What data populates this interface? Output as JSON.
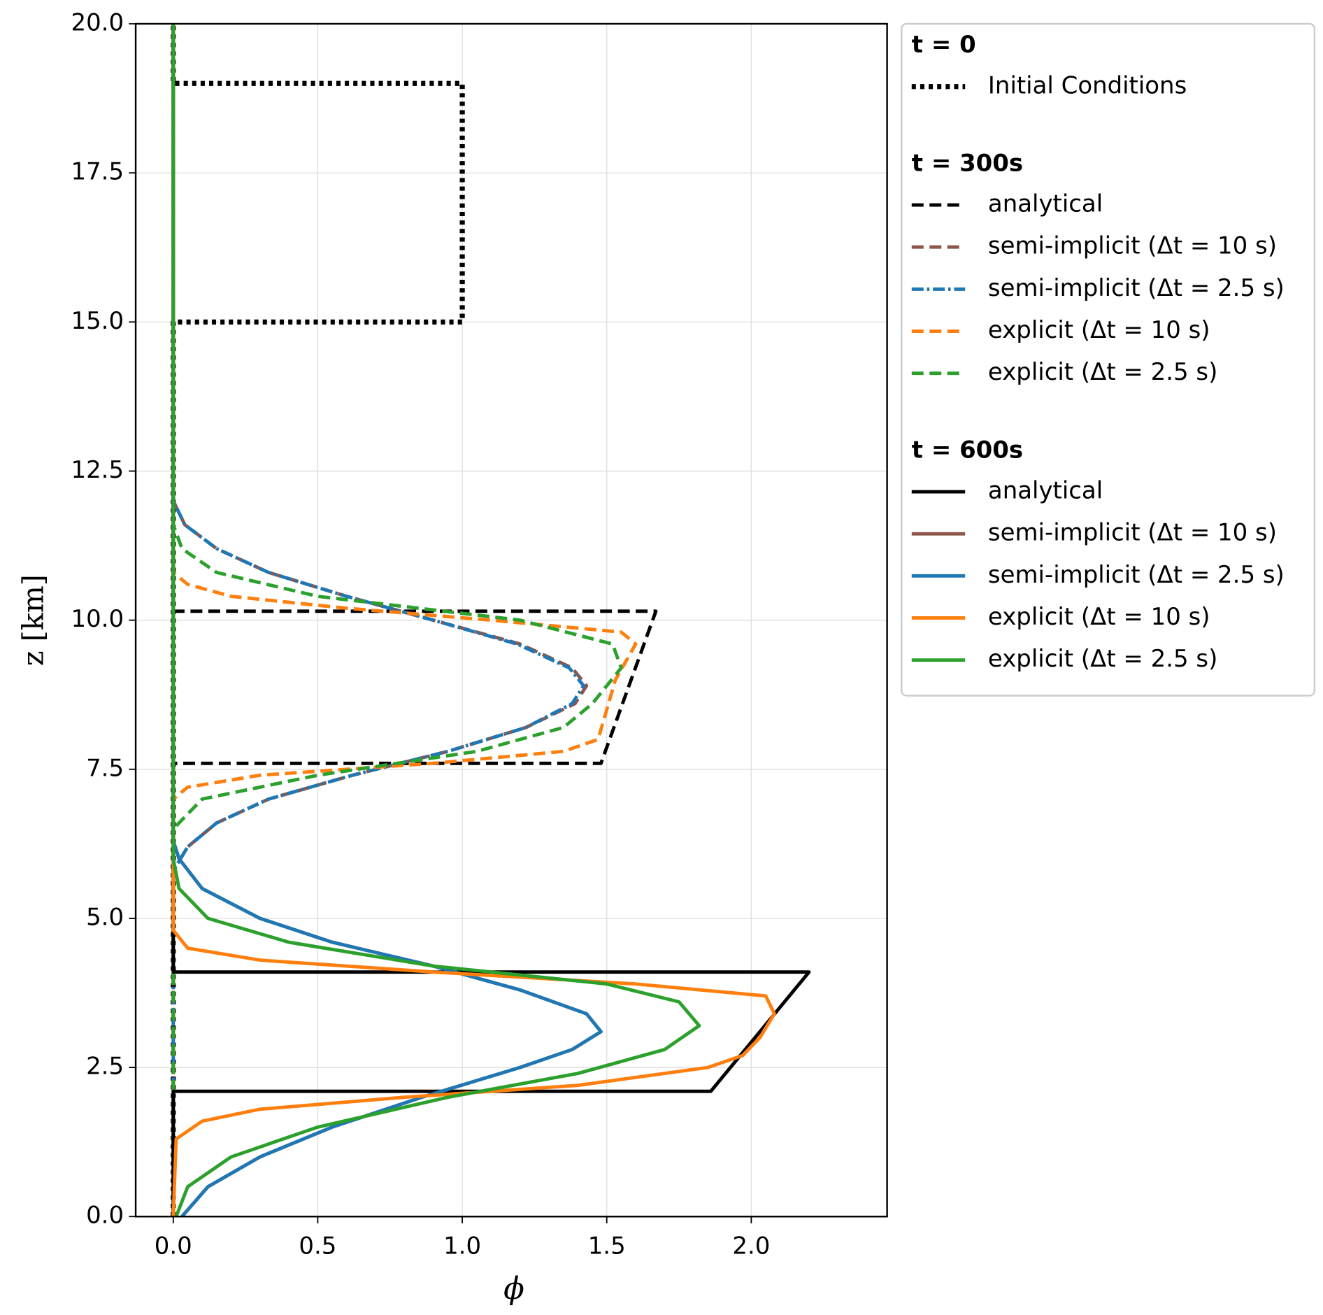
{
  "chart_data": {
    "type": "line",
    "xlabel": "ϕ",
    "ylabel": "z [km]",
    "xlim": [
      -0.13,
      2.47
    ],
    "ylim": [
      0,
      20
    ],
    "xticks": [
      {
        "value": 0,
        "label": "0.0"
      },
      {
        "value": 0.5,
        "label": "0.5"
      },
      {
        "value": 1,
        "label": "1.0"
      },
      {
        "value": 1.5,
        "label": "1.5"
      },
      {
        "value": 2,
        "label": "2.0"
      }
    ],
    "yticks": [
      {
        "value": 0,
        "label": "0.0"
      },
      {
        "value": 2.5,
        "label": "2.5"
      },
      {
        "value": 5,
        "label": "5.0"
      },
      {
        "value": 7.5,
        "label": "7.5"
      },
      {
        "value": 10,
        "label": "10.0"
      },
      {
        "value": 12.5,
        "label": "12.5"
      },
      {
        "value": 15,
        "label": "15.0"
      },
      {
        "value": 17.5,
        "label": "17.5"
      },
      {
        "value": 20,
        "label": "20.0"
      }
    ],
    "grid": true,
    "legend": "outside right",
    "legend_groups": [
      {
        "title": "t = 0",
        "series": [
          0
        ]
      },
      {
        "title": "t = 300s",
        "series": [
          1,
          2,
          3,
          4,
          5
        ]
      },
      {
        "title": "t = 600s",
        "series": [
          6,
          7,
          8,
          9,
          10
        ]
      }
    ],
    "series": [
      {
        "name": "Initial Conditions",
        "color": "#000000",
        "style": "dotted",
        "z": [
          0,
          15,
          15,
          19,
          19,
          20
        ],
        "values": [
          0,
          0,
          1,
          1,
          0,
          0
        ]
      },
      {
        "name": "analytical",
        "color": "#000000",
        "style": "dashed",
        "z": [
          0,
          7.6,
          7.6,
          10.15,
          10.15,
          20
        ],
        "values": [
          0,
          0,
          1.48,
          1.67,
          0,
          0
        ]
      },
      {
        "name": "semi-implicit (Δt = 10 s)",
        "color": "#8c564b",
        "style": "dashed",
        "z": [
          0,
          5.8,
          6.2,
          6.6,
          7.0,
          7.4,
          7.8,
          8.2,
          8.6,
          8.9,
          9.2,
          9.6,
          10.0,
          10.4,
          10.8,
          11.2,
          11.6,
          12.0,
          20
        ],
        "values": [
          0,
          0,
          0.05,
          0.15,
          0.33,
          0.62,
          0.95,
          1.22,
          1.39,
          1.43,
          1.38,
          1.2,
          0.9,
          0.6,
          0.33,
          0.15,
          0.04,
          0,
          0
        ]
      },
      {
        "name": "semi-implicit (Δt = 2.5 s)",
        "color": "#1f77b4",
        "style": "dashdot",
        "z": [
          0,
          5.8,
          6.2,
          6.6,
          7.0,
          7.4,
          7.8,
          8.2,
          8.6,
          8.9,
          9.2,
          9.6,
          10.0,
          10.4,
          10.8,
          11.2,
          11.6,
          12.0,
          20
        ],
        "values": [
          0,
          0,
          0.05,
          0.15,
          0.33,
          0.62,
          0.95,
          1.22,
          1.38,
          1.42,
          1.37,
          1.19,
          0.9,
          0.6,
          0.33,
          0.15,
          0.04,
          0,
          0
        ]
      },
      {
        "name": "explicit (Δt = 10 s)",
        "color": "#ff7f0e",
        "style": "dashed",
        "z": [
          0,
          7.0,
          7.2,
          7.4,
          7.6,
          7.8,
          8.0,
          9.0,
          9.6,
          9.8,
          10.0,
          10.2,
          10.4,
          10.6,
          10.8,
          20
        ],
        "values": [
          0,
          0,
          0.05,
          0.3,
          0.9,
          1.35,
          1.47,
          1.53,
          1.6,
          1.55,
          1.1,
          0.6,
          0.2,
          0.05,
          0,
          0
        ]
      },
      {
        "name": "explicit (Δt = 2.5 s)",
        "color": "#2ca02c",
        "style": "dashed",
        "z": [
          0,
          6.5,
          7.0,
          7.4,
          7.8,
          8.2,
          8.6,
          9.2,
          9.6,
          10.0,
          10.4,
          10.8,
          11.2,
          11.6,
          20
        ],
        "values": [
          0,
          0,
          0.1,
          0.5,
          1.05,
          1.35,
          1.45,
          1.55,
          1.52,
          1.2,
          0.5,
          0.15,
          0.03,
          0,
          0
        ]
      },
      {
        "name": "analytical",
        "color": "#000000",
        "style": "solid",
        "z": [
          0,
          2.1,
          2.1,
          4.1,
          4.1,
          20
        ],
        "values": [
          0,
          0,
          1.86,
          2.2,
          0,
          0
        ]
      },
      {
        "name": "semi-implicit (Δt = 10 s)",
        "color": "#8c564b",
        "style": "solid",
        "z": [
          0,
          0.5,
          1.0,
          1.5,
          2.0,
          2.5,
          2.8,
          3.1,
          3.4,
          3.8,
          4.2,
          4.6,
          5.0,
          5.5,
          6.0,
          6.3,
          20
        ],
        "values": [
          0.03,
          0.12,
          0.3,
          0.55,
          0.86,
          1.2,
          1.38,
          1.48,
          1.43,
          1.2,
          0.9,
          0.55,
          0.3,
          0.1,
          0.02,
          0,
          0
        ]
      },
      {
        "name": "semi-implicit (Δt = 2.5 s)",
        "color": "#1f77b4",
        "style": "solid",
        "z": [
          0,
          0.5,
          1.0,
          1.5,
          2.0,
          2.5,
          2.8,
          3.1,
          3.4,
          3.8,
          4.2,
          4.6,
          5.0,
          5.5,
          6.0,
          6.3,
          20
        ],
        "values": [
          0.03,
          0.12,
          0.3,
          0.55,
          0.86,
          1.2,
          1.38,
          1.48,
          1.43,
          1.2,
          0.9,
          0.55,
          0.3,
          0.1,
          0.02,
          0,
          0
        ]
      },
      {
        "name": "explicit (Δt = 10 s)",
        "color": "#ff7f0e",
        "style": "solid",
        "z": [
          0,
          1.3,
          1.6,
          1.8,
          2.0,
          2.2,
          2.5,
          2.7,
          3.0,
          3.4,
          3.7,
          3.9,
          4.1,
          4.3,
          4.5,
          4.8,
          20
        ],
        "values": [
          0,
          0.01,
          0.1,
          0.3,
          0.8,
          1.4,
          1.85,
          1.97,
          2.03,
          2.08,
          2.05,
          1.6,
          0.9,
          0.3,
          0.05,
          0,
          0
        ]
      },
      {
        "name": "explicit (Δt = 2.5 s)",
        "color": "#2ca02c",
        "style": "solid",
        "z": [
          0,
          0.5,
          1.0,
          1.5,
          2.0,
          2.4,
          2.8,
          3.2,
          3.6,
          3.9,
          4.2,
          4.6,
          5.0,
          5.5,
          6.0,
          20
        ],
        "values": [
          0.01,
          0.05,
          0.2,
          0.5,
          0.95,
          1.4,
          1.7,
          1.82,
          1.75,
          1.5,
          0.9,
          0.4,
          0.12,
          0.02,
          0,
          0
        ]
      }
    ]
  }
}
